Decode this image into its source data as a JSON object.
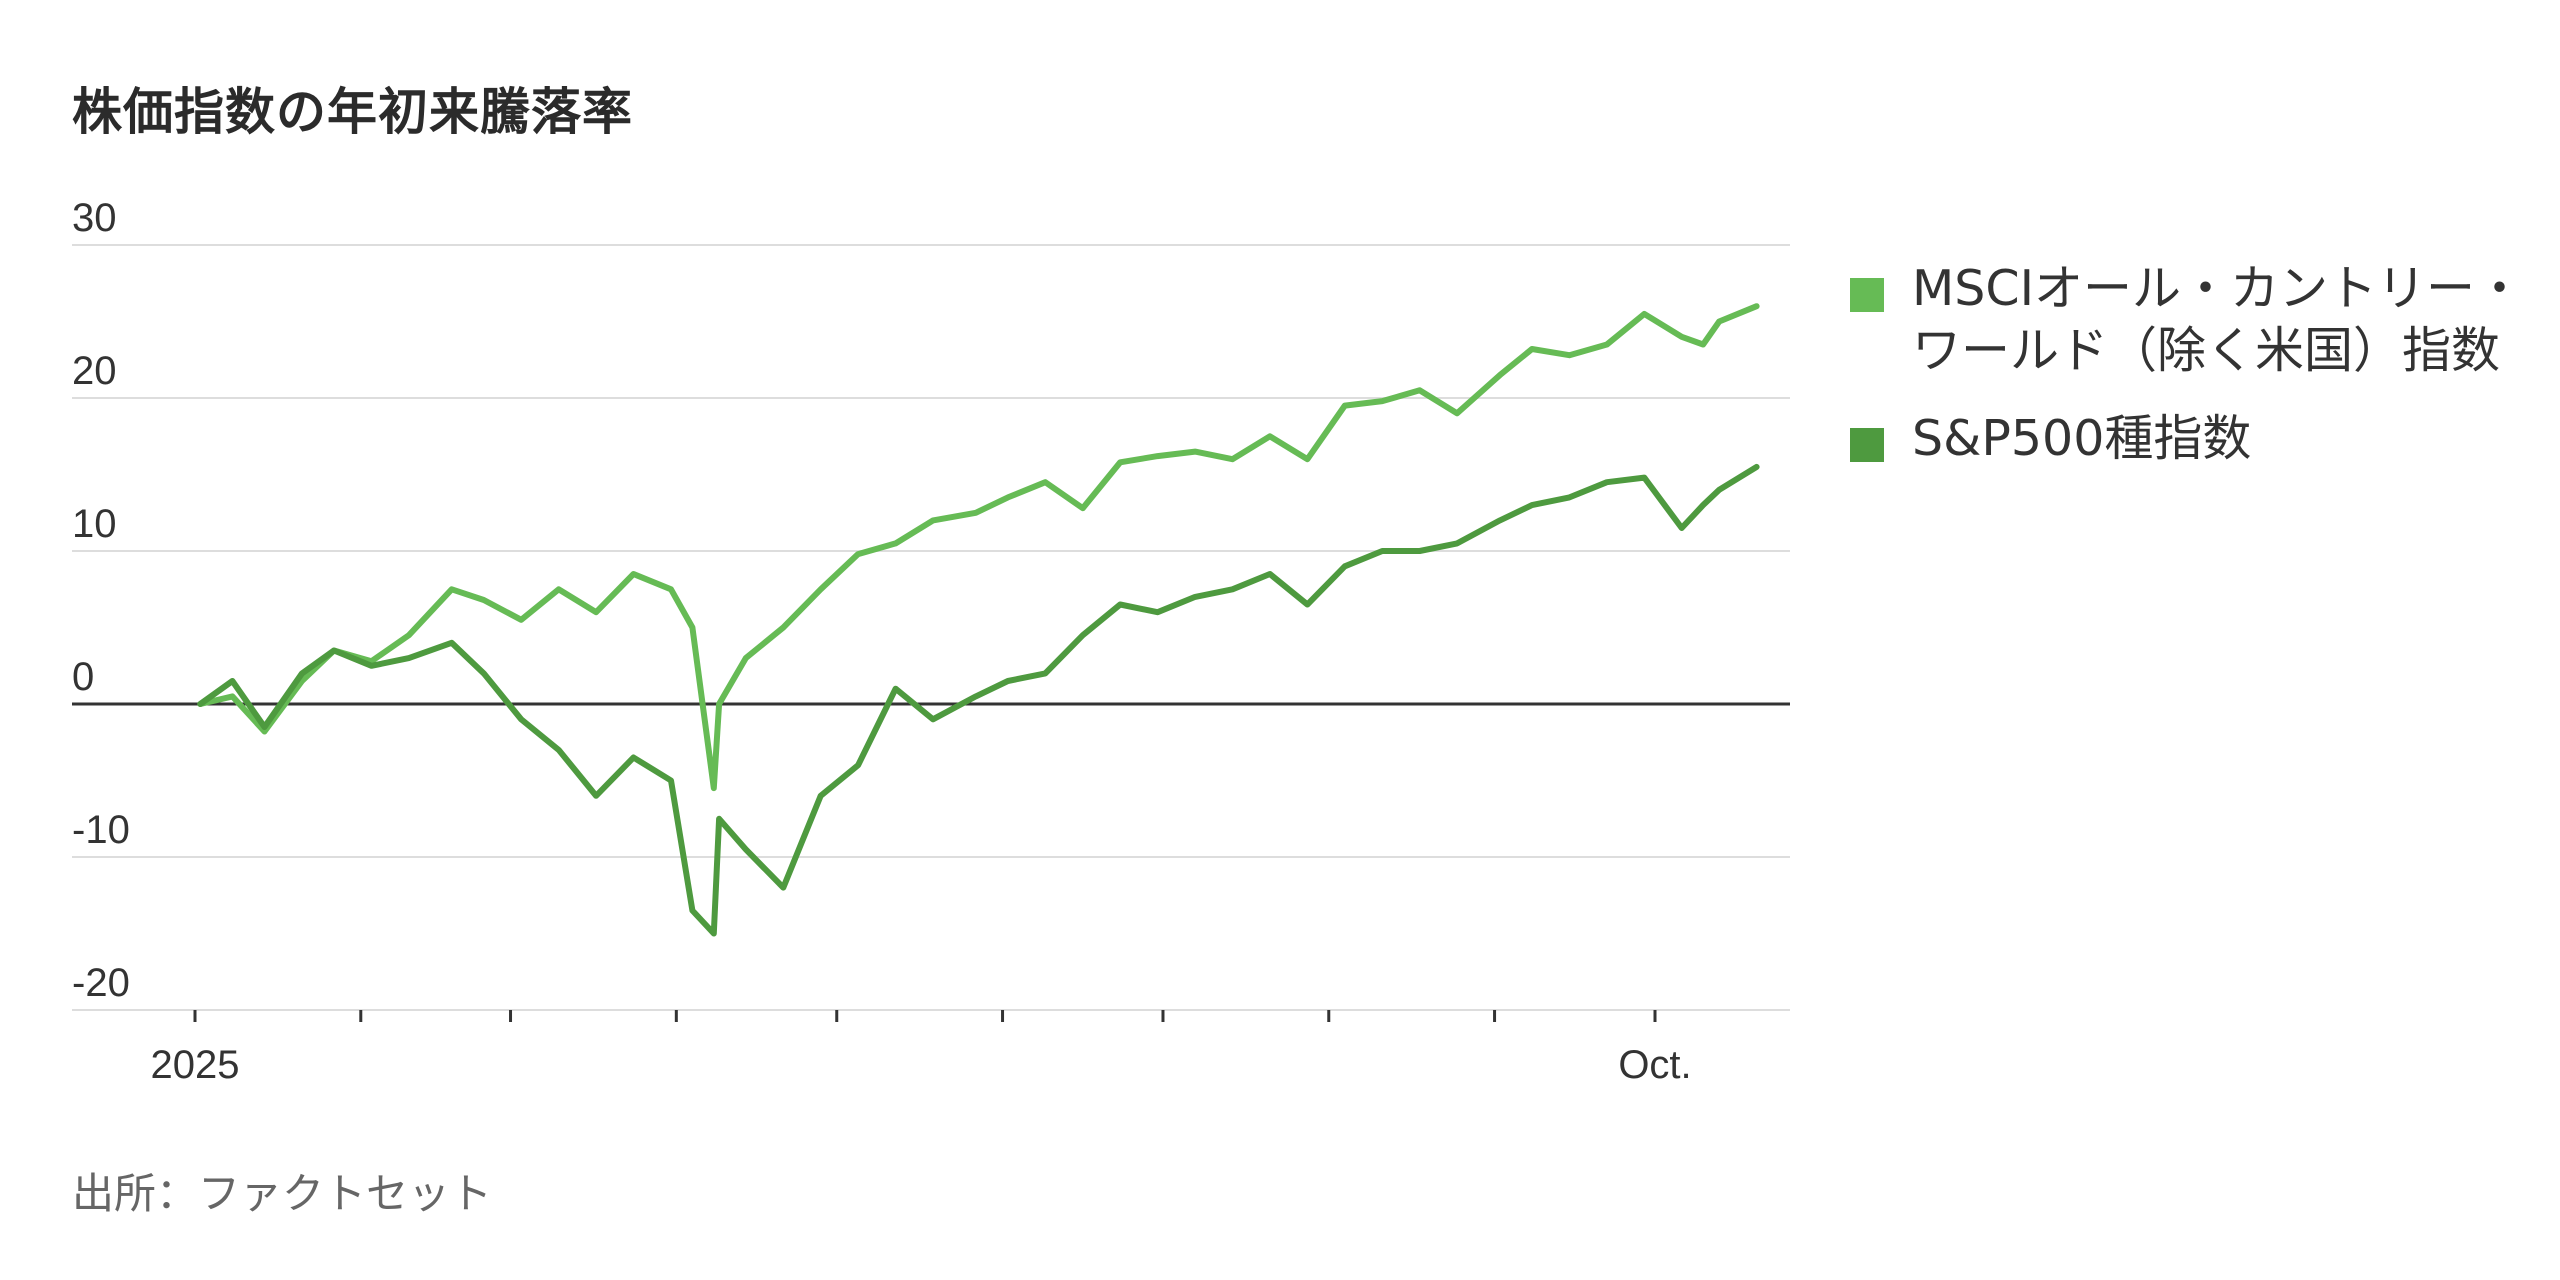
{
  "title": "株価指数の年初来騰落率",
  "source": "出所：ファクトセット",
  "legend": [
    {
      "label": "MSCIオール・カントリー・ワールド（除く米国）指数",
      "color": "#66bb55"
    },
    {
      "label": "S&P500種指数",
      "color": "#4e9a3f"
    }
  ],
  "chart_data": {
    "type": "line",
    "ylim": [
      -20,
      30
    ],
    "yticks": [
      "30",
      "20",
      "10",
      "0",
      "-10",
      "-20"
    ],
    "ytick_values": [
      30,
      20,
      10,
      0,
      -10,
      -20
    ],
    "xticks": [
      "2025",
      "Oct."
    ],
    "grid": true,
    "legend_position": "right",
    "x": [
      "2025-01-02",
      "2025-01-08",
      "2025-01-14",
      "2025-01-21",
      "2025-01-27",
      "2025-02-03",
      "2025-02-10",
      "2025-02-18",
      "2025-02-24",
      "2025-03-03",
      "2025-03-10",
      "2025-03-17",
      "2025-03-24",
      "2025-03-31",
      "2025-04-04",
      "2025-04-08",
      "2025-04-09",
      "2025-04-14",
      "2025-04-21",
      "2025-04-28",
      "2025-05-05",
      "2025-05-12",
      "2025-05-19",
      "2025-05-27",
      "2025-06-02",
      "2025-06-09",
      "2025-06-16",
      "2025-06-23",
      "2025-06-30",
      "2025-07-07",
      "2025-07-14",
      "2025-07-21",
      "2025-07-28",
      "2025-08-04",
      "2025-08-11",
      "2025-08-18",
      "2025-08-25",
      "2025-09-02",
      "2025-09-08",
      "2025-09-15",
      "2025-09-22",
      "2025-09-29",
      "2025-10-06",
      "2025-10-10",
      "2025-10-13",
      "2025-10-20"
    ],
    "series": [
      {
        "name": "MSCIオール・カントリー・ワールド（除く米国）指数",
        "color": "#66bb55",
        "values": [
          0.0,
          0.5,
          -1.8,
          1.5,
          3.5,
          2.8,
          4.5,
          7.5,
          6.8,
          5.5,
          7.5,
          6.0,
          8.5,
          7.5,
          5.0,
          -5.5,
          0.0,
          3.0,
          5.0,
          7.5,
          9.8,
          10.5,
          12.0,
          12.5,
          13.5,
          14.5,
          12.8,
          15.8,
          16.2,
          16.5,
          16.0,
          17.5,
          16.0,
          19.5,
          19.8,
          20.5,
          19.0,
          21.5,
          23.2,
          22.8,
          23.5,
          25.5,
          24.0,
          23.5,
          25.0,
          26.0
        ]
      },
      {
        "name": "S&P500種指数",
        "color": "#4e9a3f",
        "values": [
          0.0,
          1.5,
          -1.5,
          2.0,
          3.5,
          2.5,
          3.0,
          4.0,
          2.0,
          -1.0,
          -3.0,
          -6.0,
          -3.5,
          -5.0,
          -13.5,
          -15.0,
          -7.5,
          -9.5,
          -12.0,
          -6.0,
          -4.0,
          1.0,
          -1.0,
          0.5,
          1.5,
          2.0,
          4.5,
          6.5,
          6.0,
          7.0,
          7.5,
          8.5,
          6.5,
          9.0,
          10.0,
          10.0,
          10.5,
          12.0,
          13.0,
          13.5,
          14.5,
          14.8,
          11.5,
          13.0,
          14.0,
          15.5
        ]
      }
    ]
  }
}
